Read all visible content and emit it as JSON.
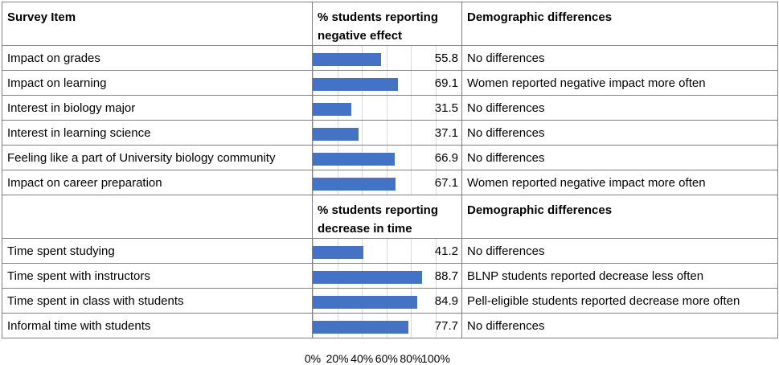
{
  "chart_data": {
    "type": "table",
    "section1": {
      "headers": [
        "Survey Item",
        "% students reporting negative effect",
        "Demographic differences"
      ],
      "rows": [
        {
          "item": "Impact on grades",
          "value": 55.8,
          "value_label": "55.8",
          "difference": "No differences"
        },
        {
          "item": "Impact on learning",
          "value": 69.1,
          "value_label": "69.1",
          "difference": "Women reported negative impact more often"
        },
        {
          "item": "Interest in biology major",
          "value": 31.5,
          "value_label": "31.5",
          "difference": "No differences"
        },
        {
          "item": "Interest in learning science",
          "value": 37.1,
          "value_label": "37.1",
          "difference": "No differences"
        },
        {
          "item": "Feeling like a part of University biology community",
          "value": 66.9,
          "value_label": "66.9",
          "difference": "No differences"
        },
        {
          "item": "Impact on career preparation",
          "value": 67.1,
          "value_label": "67.1",
          "difference": "Women reported negative impact more often"
        }
      ]
    },
    "section2": {
      "headers": [
        "",
        "% students reporting decrease in time",
        "Demographic differences"
      ],
      "rows": [
        {
          "item": "Time spent studying",
          "value": 41.2,
          "value_label": "41.2",
          "difference": "No differences"
        },
        {
          "item": "Time spent with instructors",
          "value": 88.7,
          "value_label": "88.7",
          "difference": "BLNP students reported decrease less often"
        },
        {
          "item": "Time spent in class with students",
          "value": 84.9,
          "value_label": "84.9",
          "difference": "Pell-eligible students reported decrease more often"
        },
        {
          "item": "Informal time with students",
          "value": 77.7,
          "value_label": "77.7",
          "difference": "No differences"
        }
      ]
    },
    "xaxis": {
      "range": [
        0,
        100
      ],
      "ticks": [
        0,
        20,
        40,
        60,
        80,
        100
      ],
      "tick_labels": [
        "0%",
        "20%",
        "40%",
        "60%",
        "80%",
        "100%"
      ]
    },
    "bar_color": "#4472c4"
  }
}
